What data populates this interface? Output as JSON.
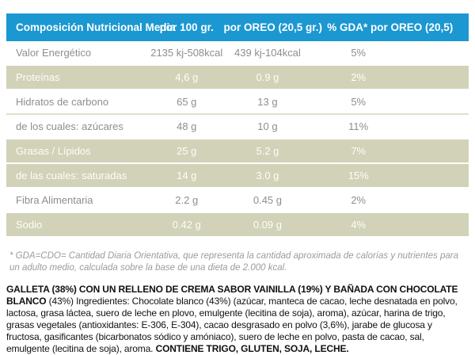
{
  "colors": {
    "header_bg": "#1b97d1",
    "row_alt_bg": "#d2d2b8"
  },
  "table": {
    "header": {
      "composition": "Composición Nutricional Media",
      "per_100": "por 100 gr.",
      "per_oreo": "por OREO (20,5 gr.)",
      "gda": "% GDA* por OREO (20,5)"
    },
    "rows": [
      {
        "label": "Valor Energético",
        "per_100": "2135 kj-508kcal",
        "per_oreo": "439 kj-104kcal",
        "gda": "5%"
      },
      {
        "label": "Proteínas",
        "per_100": "4,6 g",
        "per_oreo": "0.9 g",
        "gda": "2%"
      },
      {
        "label": "Hidratos de carbono",
        "per_100": "65 g",
        "per_oreo": "13 g",
        "gda": "5%"
      },
      {
        "label": "de los cuales: azúcares",
        "per_100": "48 g",
        "per_oreo": "10 g",
        "gda": "11%"
      },
      {
        "label": "Grasas / Lípidos",
        "per_100": "25 g",
        "per_oreo": "5.2 g",
        "gda": "7%"
      },
      {
        "label": "de las cuales: saturadas",
        "per_100": "14 g",
        "per_oreo": "3.0 g",
        "gda": "15%"
      },
      {
        "label": "Fibra Alimentaria",
        "per_100": "2.2 g",
        "per_oreo": "0.45 g",
        "gda": "2%"
      },
      {
        "label": "Sodio",
        "per_100": "0.42 g",
        "per_oreo": "0.09 g",
        "gda": "4%"
      }
    ]
  },
  "footnote": "* GDA=CDO= Cantidad Diaria Orientativa, que representa la cantidad aproximada de calorías y nutrientes para un adulto medio, calculada sobre la base de una dieta de 2.000 kcal.",
  "ingredients": {
    "heading": "GALLETA (38%) CON UN RELLENO DE CREMA SABOR VAINILLA (19%) Y BAÑADA CON CHOCOLATE BLANCO",
    "body": "(43%) Ingredientes: Chocolate blanco (43%) (azúcar, manteca de cacao, leche desnatada en polvo, lactosa, grasa láctea, suero de leche en plovo, emulgente (lecitina de soja), aroma), azúcar, harina de trigo, grasas vegetales (antioxidantes: E-306, E-304), cacao desgrasado en polvo (3,6%), jarabe de glucosa y fructosa, gasificantes (bicarbonatos sódico y amóniaco), suero de leche en polvo, pasta de cacao, sal, emulgente (lecitina de soja), aroma.",
    "allergens": "CONTIENE TRIGO, GLUTEN, SOJA, LECHE."
  }
}
